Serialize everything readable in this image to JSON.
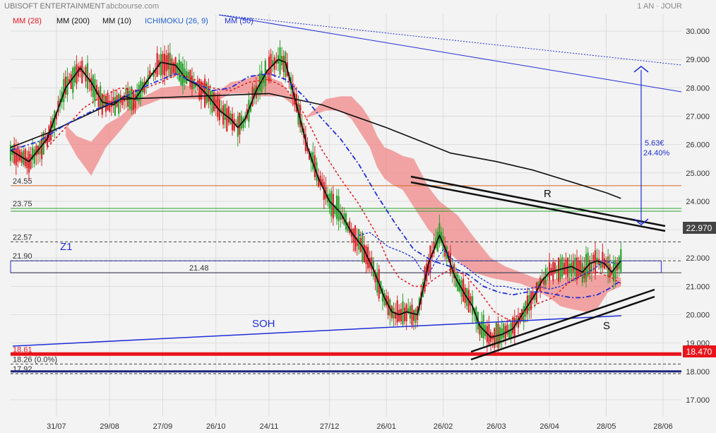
{
  "header": {
    "title": "UBISOFT ENTERTAINMENT",
    "source": "abcbourse.com",
    "period": "1 AN · JOUR"
  },
  "legend": [
    {
      "label": "MM (28)",
      "color": "#e8141b"
    },
    {
      "label": "MM (200)",
      "color": "#111111"
    },
    {
      "label": "MM (10)",
      "color": "#111111"
    },
    {
      "label": "ICHIMOKU (26, 9)",
      "color": "#1f5fd6"
    },
    {
      "label": "MM (50)",
      "color": "#1f2fd6"
    }
  ],
  "colors": {
    "candle_up": "#2ca02c",
    "candle_down": "#d62728",
    "cloud": "#f08080",
    "mm28": "#e8141b",
    "mm50": "#1f2fd6",
    "black": "#111111",
    "blue_line": "#1f2fd6",
    "orange": "#d2691e",
    "green": "#2ca02c",
    "support_red": "#e8141b",
    "price_box": "#e8141b"
  },
  "chart_data": {
    "type": "candlestick",
    "ylim": [
      16.4,
      30.6
    ],
    "y_ticks": [
      "30.000",
      "29.000",
      "28.000",
      "27.000",
      "26.000",
      "25.000",
      "24.000",
      "23.000",
      "22.000",
      "21.000",
      "20.000",
      "19.000",
      "18.000",
      "17.000"
    ],
    "y_tick_values": [
      30,
      29,
      28,
      27,
      26,
      25,
      24,
      23,
      22,
      21,
      20,
      19,
      18,
      17
    ],
    "x_ticks": [
      "31/07",
      "29/08",
      "27/09",
      "26/10",
      "24/11",
      "27/12",
      "26/01",
      "26/02",
      "26/03",
      "26/04",
      "28/05",
      "28/06"
    ],
    "x_tick_index": [
      25,
      54,
      83,
      112,
      141,
      174,
      205,
      236,
      265,
      294,
      325,
      356
    ],
    "last_price": "22.970",
    "last_price_value": 22.97,
    "support_price": "18.470",
    "support_price_value": 18.47,
    "horizontal_levels": [
      {
        "label": "24.55",
        "value": 24.55,
        "color": "#d2691e",
        "style": "solid"
      },
      {
        "label": "23.75",
        "value": 23.75,
        "color": "#2ca02c",
        "style": "double"
      },
      {
        "label": "22.57",
        "value": 22.57,
        "color": "#444444",
        "style": "dashed"
      },
      {
        "label": "21.90",
        "value": 21.9,
        "color": "#444444",
        "style": "dashed"
      },
      {
        "label": "21.48",
        "value": 21.48,
        "color": "#444444",
        "style": "solid"
      },
      {
        "label": "18.61",
        "value": 18.61,
        "color": "#e8141b",
        "style": "thick"
      },
      {
        "label": "18.26 (0.0%)",
        "value": 18.26,
        "color": "#444444",
        "style": "dashed"
      },
      {
        "label": "17.92",
        "value": 17.92,
        "color": "#333333",
        "style": "dashed"
      },
      {
        "label": "",
        "value": 18.0,
        "color": "#1a237e",
        "style": "thick"
      }
    ],
    "annotations": {
      "z1": "Z1",
      "soh": "SOH",
      "r": "R",
      "s": "S",
      "target_value": "5.63€",
      "target_pct": "24.40%"
    },
    "series": [
      {
        "name": "MM (200)",
        "points": [
          [
            0,
            25.9
          ],
          [
            20,
            26.4
          ],
          [
            60,
            27.6
          ],
          [
            100,
            27.7
          ],
          [
            141,
            27.8
          ],
          [
            170,
            27.4
          ],
          [
            205,
            26.6
          ],
          [
            240,
            25.7
          ],
          [
            265,
            25.4
          ],
          [
            285,
            25.1
          ],
          [
            305,
            24.7
          ],
          [
            325,
            24.3
          ],
          [
            333,
            24.1
          ]
        ]
      },
      {
        "name": "MM (10)",
        "points": [
          [
            0,
            25.8
          ],
          [
            10,
            25.4
          ],
          [
            20,
            26.2
          ],
          [
            30,
            28.0
          ],
          [
            38,
            28.7
          ],
          [
            44,
            28.2
          ],
          [
            50,
            27.5
          ],
          [
            56,
            27.4
          ],
          [
            62,
            27.7
          ],
          [
            68,
            27.6
          ],
          [
            74,
            28.2
          ],
          [
            82,
            28.9
          ],
          [
            90,
            28.8
          ],
          [
            96,
            28.3
          ],
          [
            102,
            28.1
          ],
          [
            108,
            27.7
          ],
          [
            114,
            27.2
          ],
          [
            120,
            26.9
          ],
          [
            124,
            26.6
          ],
          [
            128,
            26.9
          ],
          [
            134,
            27.9
          ],
          [
            140,
            28.6
          ],
          [
            146,
            29.0
          ],
          [
            150,
            28.9
          ],
          [
            156,
            27.4
          ],
          [
            162,
            25.9
          ],
          [
            168,
            24.8
          ],
          [
            174,
            24.0
          ],
          [
            180,
            23.6
          ],
          [
            186,
            22.9
          ],
          [
            192,
            22.4
          ],
          [
            198,
            21.6
          ],
          [
            204,
            20.6
          ],
          [
            208,
            20.1
          ],
          [
            212,
            20.0
          ],
          [
            216,
            20.1
          ],
          [
            222,
            20.0
          ],
          [
            228,
            21.8
          ],
          [
            234,
            22.8
          ],
          [
            238,
            22.2
          ],
          [
            242,
            21.4
          ],
          [
            248,
            20.7
          ],
          [
            252,
            20.3
          ],
          [
            256,
            19.6
          ],
          [
            262,
            19.2
          ],
          [
            268,
            19.3
          ],
          [
            274,
            19.5
          ],
          [
            280,
            20.1
          ],
          [
            286,
            20.7
          ],
          [
            290,
            21.2
          ],
          [
            294,
            21.5
          ],
          [
            300,
            21.6
          ],
          [
            306,
            21.7
          ],
          [
            312,
            21.5
          ],
          [
            316,
            21.8
          ],
          [
            320,
            21.9
          ],
          [
            324,
            21.8
          ],
          [
            328,
            21.5
          ],
          [
            333,
            21.9
          ]
        ]
      },
      {
        "name": "MM (28)",
        "points": [
          [
            20,
            25.9
          ],
          [
            30,
            26.6
          ],
          [
            40,
            27.3
          ],
          [
            50,
            27.7
          ],
          [
            60,
            28.0
          ],
          [
            70,
            27.9
          ],
          [
            82,
            28.2
          ],
          [
            92,
            28.5
          ],
          [
            100,
            28.3
          ],
          [
            110,
            28.0
          ],
          [
            120,
            27.9
          ],
          [
            130,
            28.2
          ],
          [
            141,
            28.3
          ],
          [
            150,
            28.0
          ],
          [
            160,
            27.1
          ],
          [
            170,
            25.8
          ],
          [
            180,
            24.8
          ],
          [
            190,
            23.9
          ],
          [
            200,
            22.8
          ],
          [
            206,
            21.9
          ],
          [
            212,
            21.3
          ],
          [
            220,
            21.0
          ],
          [
            226,
            21.0
          ],
          [
            232,
            21.3
          ],
          [
            240,
            21.6
          ],
          [
            248,
            21.4
          ],
          [
            256,
            20.8
          ],
          [
            264,
            20.1
          ],
          [
            272,
            19.8
          ],
          [
            280,
            20.1
          ],
          [
            288,
            20.4
          ],
          [
            296,
            20.6
          ],
          [
            304,
            21.1
          ],
          [
            312,
            21.4
          ],
          [
            320,
            21.5
          ],
          [
            328,
            21.3
          ],
          [
            333,
            21.1
          ]
        ]
      },
      {
        "name": "MM (50)",
        "points": [
          [
            0,
            25.8
          ],
          [
            15,
            26.1
          ],
          [
            30,
            26.7
          ],
          [
            45,
            27.2
          ],
          [
            60,
            27.6
          ],
          [
            75,
            28.1
          ],
          [
            90,
            28.5
          ],
          [
            100,
            28.2
          ],
          [
            110,
            27.9
          ],
          [
            120,
            28.0
          ],
          [
            130,
            28.4
          ],
          [
            141,
            28.5
          ],
          [
            150,
            28.3
          ],
          [
            160,
            27.7
          ],
          [
            170,
            26.9
          ],
          [
            180,
            26.2
          ],
          [
            190,
            25.3
          ],
          [
            200,
            24.2
          ],
          [
            210,
            23.2
          ],
          [
            220,
            22.3
          ],
          [
            230,
            21.9
          ],
          [
            240,
            21.7
          ],
          [
            250,
            21.4
          ],
          [
            258,
            21.0
          ],
          [
            266,
            20.8
          ],
          [
            274,
            20.7
          ],
          [
            282,
            20.8
          ],
          [
            290,
            20.8
          ],
          [
            298,
            20.7
          ],
          [
            306,
            20.6
          ],
          [
            312,
            20.6
          ],
          [
            320,
            20.7
          ],
          [
            326,
            20.9
          ],
          [
            333,
            21.2
          ]
        ]
      },
      {
        "name": "ICHIMOKU (26, 9)",
        "points": [
          [
            190,
            22.8
          ],
          [
            196,
            22.9
          ],
          [
            200,
            22.7
          ],
          [
            206,
            22.4
          ],
          [
            214,
            22.2
          ],
          [
            220,
            22.0
          ],
          [
            224,
            21.6
          ],
          [
            228,
            21.4
          ],
          [
            232,
            21.9
          ],
          [
            236,
            22.3
          ],
          [
            240,
            22.0
          ],
          [
            248,
            21.7
          ],
          [
            256,
            21.3
          ],
          [
            264,
            21.0
          ],
          [
            270,
            21.0
          ],
          [
            276,
            20.9
          ],
          [
            282,
            20.9
          ],
          [
            288,
            21.0
          ],
          [
            294,
            20.9
          ],
          [
            300,
            21.0
          ],
          [
            306,
            21.2
          ],
          [
            312,
            21.4
          ],
          [
            318,
            21.6
          ],
          [
            324,
            21.9
          ],
          [
            330,
            21.8
          ]
        ]
      }
    ],
    "cloud": [
      [
        30,
        26.7,
        26.3
      ],
      [
        36,
        26.3,
        25.6
      ],
      [
        44,
        26.1,
        24.9
      ],
      [
        52,
        26.7,
        25.9
      ],
      [
        60,
        27.0,
        26.5
      ],
      [
        70,
        27.6,
        27.3
      ],
      [
        82,
        28.0,
        27.6
      ],
      [
        96,
        28.1,
        27.6
      ],
      [
        106,
        27.7,
        27.6
      ],
      [
        112,
        27.8,
        27.5
      ],
      [
        120,
        28.2,
        27.8
      ],
      [
        128,
        28.3,
        27.8
      ],
      [
        136,
        28.5,
        27.7
      ],
      [
        148,
        28.2,
        27.7
      ],
      [
        156,
        27.4,
        27.3
      ],
      [
        160,
        26.9,
        26.9
      ],
      [
        172,
        27.6,
        27.2
      ],
      [
        180,
        27.7,
        27.2
      ],
      [
        186,
        27.7,
        26.9
      ],
      [
        192,
        27.3,
        26.3
      ],
      [
        196,
        26.9,
        25.9
      ],
      [
        200,
        26.3,
        25.2
      ],
      [
        204,
        25.9,
        24.8
      ],
      [
        208,
        25.8,
        24.6
      ],
      [
        214,
        25.6,
        24.4
      ],
      [
        220,
        25.5,
        23.8
      ],
      [
        228,
        24.5,
        23.0
      ],
      [
        234,
        24.0,
        22.6
      ],
      [
        238,
        23.8,
        22.3
      ],
      [
        244,
        23.5,
        21.9
      ],
      [
        252,
        22.8,
        21.5
      ],
      [
        262,
        22.0,
        21.3
      ],
      [
        270,
        21.7,
        21.2
      ],
      [
        278,
        21.5,
        21.1
      ],
      [
        286,
        21.3,
        20.9
      ],
      [
        294,
        21.2,
        20.6
      ],
      [
        300,
        21.3,
        20.3
      ],
      [
        306,
        21.3,
        20.2
      ],
      [
        314,
        21.4,
        20.1
      ],
      [
        320,
        21.4,
        20.2
      ],
      [
        326,
        21.4,
        20.8
      ],
      [
        333,
        21.3,
        21.0
      ]
    ]
  }
}
